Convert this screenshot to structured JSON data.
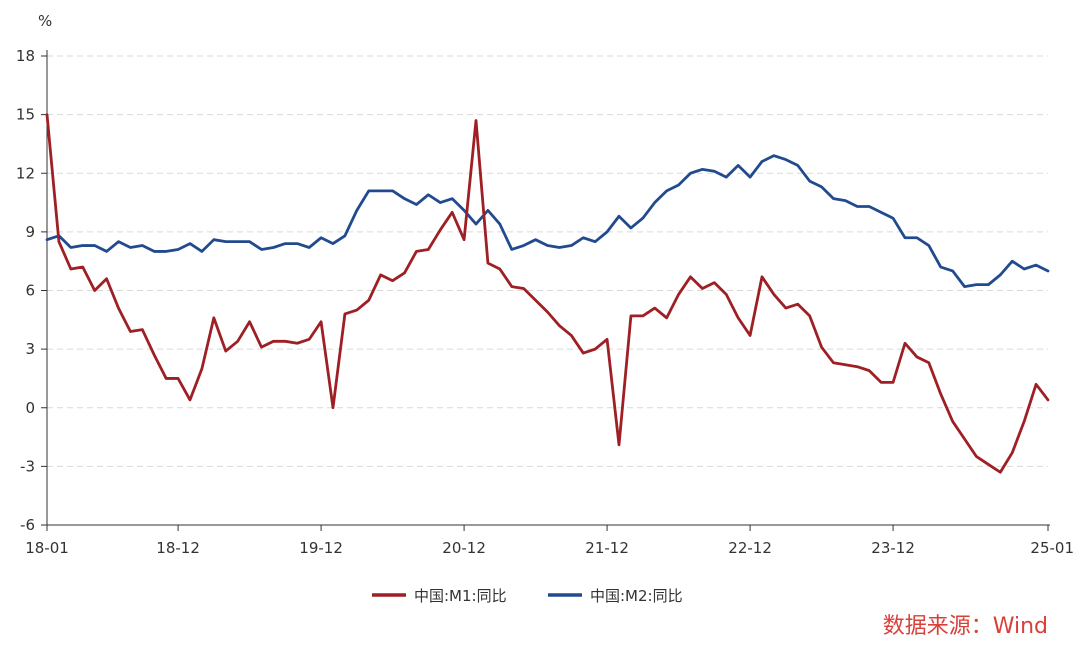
{
  "source_text": "数据来源：Wind",
  "source_color": "#d8403a",
  "chart_data": {
    "type": "line",
    "ylabel": "%",
    "ylim": [
      -6,
      18
    ],
    "yticks": [
      -6,
      -3,
      0,
      3,
      6,
      9,
      12,
      15,
      18
    ],
    "x": [
      "18-01",
      "18-02",
      "18-03",
      "18-04",
      "18-05",
      "18-06",
      "18-07",
      "18-08",
      "18-09",
      "18-10",
      "18-11",
      "18-12",
      "19-01",
      "19-02",
      "19-03",
      "19-04",
      "19-05",
      "19-06",
      "19-07",
      "19-08",
      "19-09",
      "19-10",
      "19-11",
      "19-12",
      "20-01",
      "20-02",
      "20-03",
      "20-04",
      "20-05",
      "20-06",
      "20-07",
      "20-08",
      "20-09",
      "20-10",
      "20-11",
      "20-12",
      "21-01",
      "21-02",
      "21-03",
      "21-04",
      "21-05",
      "21-06",
      "21-07",
      "21-08",
      "21-09",
      "21-10",
      "21-11",
      "21-12",
      "22-01",
      "22-02",
      "22-03",
      "22-04",
      "22-05",
      "22-06",
      "22-07",
      "22-08",
      "22-09",
      "22-10",
      "22-11",
      "22-12",
      "23-01",
      "23-02",
      "23-03",
      "23-04",
      "23-05",
      "23-06",
      "23-07",
      "23-08",
      "23-09",
      "23-10",
      "23-11",
      "23-12",
      "24-01",
      "24-02",
      "24-03",
      "24-04",
      "24-05",
      "24-06",
      "24-07",
      "24-08",
      "24-09",
      "24-10",
      "24-11",
      "24-12",
      "25-01"
    ],
    "xtick_labels": [
      "18-01",
      "18-12",
      "19-12",
      "20-12",
      "21-12",
      "22-12",
      "23-12",
      "25-01"
    ],
    "grid": "horizontal-dashed",
    "legend_position": "bottom",
    "series": [
      {
        "name": "中国:M1:同比",
        "color": "#9e1f24",
        "values": [
          15.0,
          8.5,
          7.1,
          7.2,
          6.0,
          6.6,
          5.1,
          3.9,
          4.0,
          2.7,
          1.5,
          1.5,
          0.4,
          2.0,
          4.6,
          2.9,
          3.4,
          4.4,
          3.1,
          3.4,
          3.4,
          3.3,
          3.5,
          4.4,
          0.0,
          4.8,
          5.0,
          5.5,
          6.8,
          6.5,
          6.9,
          8.0,
          8.1,
          9.1,
          10.0,
          8.6,
          14.7,
          7.4,
          7.1,
          6.2,
          6.1,
          5.5,
          4.9,
          4.2,
          3.7,
          2.8,
          3.0,
          3.5,
          -1.9,
          4.7,
          4.7,
          5.1,
          4.6,
          5.8,
          6.7,
          6.1,
          6.4,
          5.8,
          4.6,
          3.7,
          6.7,
          5.8,
          5.1,
          5.3,
          4.7,
          3.1,
          2.3,
          2.2,
          2.1,
          1.9,
          1.3,
          1.3,
          3.3,
          2.6,
          2.3,
          0.7,
          -0.7,
          -1.6,
          -2.5,
          -2.9,
          -3.3,
          -2.3,
          -0.7,
          1.2,
          0.4
        ]
      },
      {
        "name": "中国:M2:同比",
        "color": "#224a8f",
        "values": [
          8.6,
          8.8,
          8.2,
          8.3,
          8.3,
          8.0,
          8.5,
          8.2,
          8.3,
          8.0,
          8.0,
          8.1,
          8.4,
          8.0,
          8.6,
          8.5,
          8.5,
          8.5,
          8.1,
          8.2,
          8.4,
          8.4,
          8.2,
          8.7,
          8.4,
          8.8,
          10.1,
          11.1,
          11.1,
          11.1,
          10.7,
          10.4,
          10.9,
          10.5,
          10.7,
          10.1,
          9.4,
          10.1,
          9.4,
          8.1,
          8.3,
          8.6,
          8.3,
          8.2,
          8.3,
          8.7,
          8.5,
          9.0,
          9.8,
          9.2,
          9.7,
          10.5,
          11.1,
          11.4,
          12.0,
          12.2,
          12.1,
          11.8,
          12.4,
          11.8,
          12.6,
          12.9,
          12.7,
          12.4,
          11.6,
          11.3,
          10.7,
          10.6,
          10.3,
          10.3,
          10.0,
          9.7,
          8.7,
          8.7,
          8.3,
          7.2,
          7.0,
          6.2,
          6.3,
          6.3,
          6.8,
          7.5,
          7.1,
          7.3,
          7.0
        ]
      }
    ]
  }
}
